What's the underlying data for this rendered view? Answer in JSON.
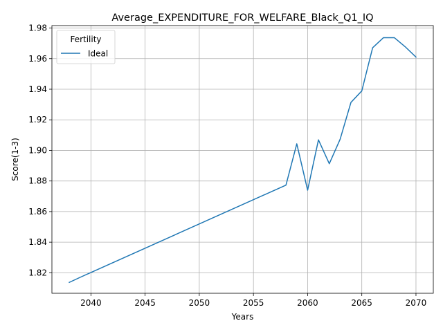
{
  "chart_data": {
    "type": "line",
    "title": "Average_EXPENDITURE_FOR_WELFARE_Black_Q1_IQ",
    "xlabel": "Years",
    "ylabel": "Score(1-3)",
    "xlim": [
      2036.4,
      2071.6
    ],
    "ylim": [
      1.8066,
      1.9816
    ],
    "xticks": [
      2040,
      2045,
      2050,
      2055,
      2060,
      2065,
      2070
    ],
    "xtick_labels": [
      "2040",
      "2045",
      "2050",
      "2055",
      "2060",
      "2065",
      "2070"
    ],
    "yticks": [
      1.82,
      1.84,
      1.86,
      1.88,
      1.9,
      1.92,
      1.94,
      1.96,
      1.98
    ],
    "ytick_labels": [
      "1.82",
      "1.84",
      "1.86",
      "1.88",
      "1.90",
      "1.92",
      "1.94",
      "1.96",
      "1.98"
    ],
    "grid": true,
    "legend": {
      "title": "Fertility",
      "placement": "top-left"
    },
    "series": [
      {
        "name": "Ideal",
        "color": "#1f77b4",
        "x": [
          2038,
          2039,
          2058,
          2059,
          2060,
          2061,
          2062,
          2063,
          2064,
          2065,
          2066,
          2067,
          2068,
          2069,
          2070
        ],
        "y": [
          1.8137,
          1.817,
          1.8773,
          1.9043,
          1.874,
          1.9069,
          1.8913,
          1.9073,
          1.9314,
          1.9389,
          1.9671,
          1.9737,
          1.9737,
          1.9678,
          1.961
        ]
      }
    ]
  }
}
